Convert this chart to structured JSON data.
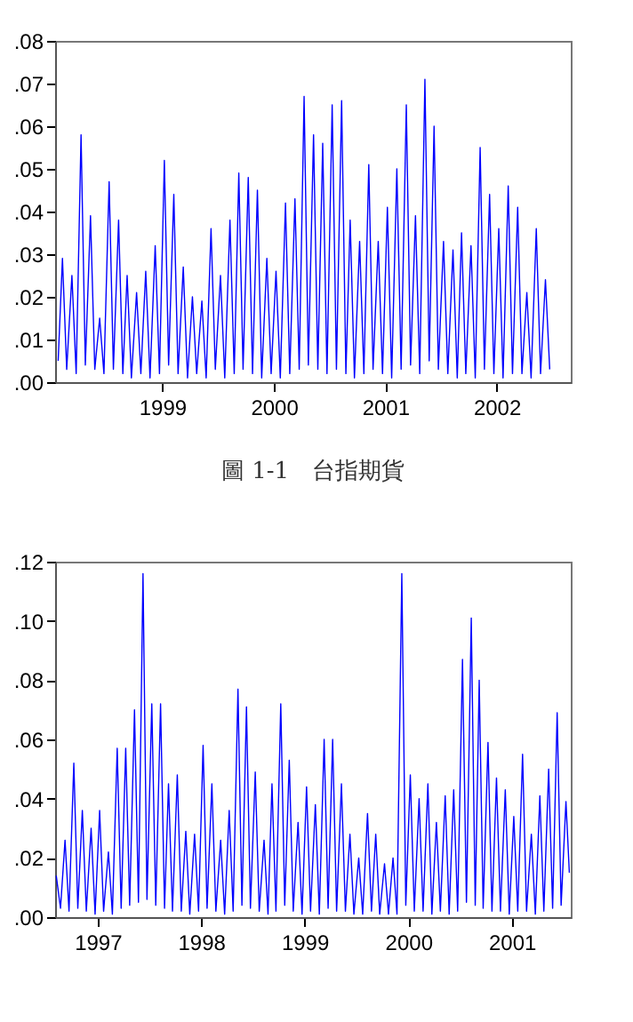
{
  "chart_data": [
    {
      "type": "line",
      "title": "圖 1-1　台指期貨",
      "xlim": [
        "1998-07-15",
        "2003-03-01"
      ],
      "ylim": [
        0,
        0.08
      ],
      "xticks": [
        {
          "value": "1999-07",
          "label": "1999"
        },
        {
          "value": "2000-07",
          "label": "2000"
        },
        {
          "value": "2001-07",
          "label": "2001"
        },
        {
          "value": "2002-07",
          "label": "2002"
        }
      ],
      "yticks": [
        {
          "value": 0,
          "label": ".00"
        },
        {
          "value": 0.01,
          "label": ".01"
        },
        {
          "value": 0.02,
          "label": ".02"
        },
        {
          "value": 0.03,
          "label": ".03"
        },
        {
          "value": 0.04,
          "label": ".04"
        },
        {
          "value": 0.05,
          "label": ".05"
        },
        {
          "value": 0.06,
          "label": ".06"
        },
        {
          "value": 0.07,
          "label": ".07"
        },
        {
          "value": 0.08,
          "label": ".08"
        }
      ],
      "grid": false,
      "series": [
        {
          "color": "#0000ff",
          "x": [
            "1998-07-25",
            "1998-08-08",
            "1998-08-22",
            "1998-09-08",
            "1998-09-22",
            "1998-10-08",
            "1998-10-22",
            "1998-11-08",
            "1998-11-22",
            "1998-12-08",
            "1998-12-22",
            "1999-01-08",
            "1999-01-22",
            "1999-02-08",
            "1999-02-22",
            "1999-03-08",
            "1999-03-22",
            "1999-04-08",
            "1999-04-22",
            "1999-05-08",
            "1999-05-22",
            "1999-06-08",
            "1999-06-22",
            "1999-07-08",
            "1999-07-22",
            "1999-08-08",
            "1999-08-22",
            "1999-09-08",
            "1999-09-22",
            "1999-10-08",
            "1999-10-22",
            "1999-11-08",
            "1999-11-22",
            "1999-12-08",
            "1999-12-22",
            "2000-01-08",
            "2000-01-22",
            "2000-02-08",
            "2000-02-22",
            "2000-03-08",
            "2000-03-22",
            "2000-04-08",
            "2000-04-22",
            "2000-05-08",
            "2000-05-22",
            "2000-06-08",
            "2000-06-22",
            "2000-07-08",
            "2000-07-22",
            "2000-08-08",
            "2000-08-22",
            "2000-09-08",
            "2000-09-22",
            "2000-10-08",
            "2000-10-22",
            "2000-11-08",
            "2000-11-22",
            "2000-12-08",
            "2000-12-22",
            "2001-01-08",
            "2001-01-22",
            "2001-02-08",
            "2001-02-22",
            "2001-03-08",
            "2001-03-22",
            "2001-04-08",
            "2001-04-22",
            "2001-05-08",
            "2001-05-22",
            "2001-06-08",
            "2001-06-22",
            "2001-07-08",
            "2001-07-22",
            "2001-08-08",
            "2001-08-22",
            "2001-09-08",
            "2001-09-22",
            "2001-10-08",
            "2001-10-22",
            "2001-11-08",
            "2001-11-22",
            "2001-12-08",
            "2001-12-22",
            "2002-01-08",
            "2002-01-22",
            "2002-02-08",
            "2002-02-22",
            "2002-03-08",
            "2002-03-22",
            "2002-04-08",
            "2002-04-22",
            "2002-05-08",
            "2002-05-22",
            "2002-06-08",
            "2002-06-22",
            "2002-07-08",
            "2002-07-22",
            "2002-08-08",
            "2002-08-22",
            "2002-09-08",
            "2002-09-22",
            "2002-10-08",
            "2002-10-22",
            "2002-11-08",
            "2002-11-22",
            "2002-12-08",
            "2002-12-22"
          ],
          "values": [
            0.005,
            0.029,
            0.003,
            0.025,
            0.002,
            0.058,
            0.004,
            0.039,
            0.003,
            0.015,
            0.002,
            0.047,
            0.003,
            0.038,
            0.002,
            0.025,
            0.001,
            0.021,
            0.002,
            0.026,
            0.001,
            0.032,
            0.002,
            0.052,
            0.004,
            0.044,
            0.002,
            0.027,
            0.001,
            0.02,
            0.002,
            0.019,
            0.001,
            0.036,
            0.003,
            0.025,
            0.001,
            0.038,
            0.002,
            0.049,
            0.003,
            0.048,
            0.002,
            0.045,
            0.001,
            0.029,
            0.002,
            0.026,
            0.001,
            0.042,
            0.002,
            0.043,
            0.003,
            0.067,
            0.004,
            0.058,
            0.003,
            0.056,
            0.002,
            0.065,
            0.003,
            0.066,
            0.002,
            0.038,
            0.001,
            0.033,
            0.002,
            0.051,
            0.003,
            0.033,
            0.002,
            0.041,
            0.001,
            0.05,
            0.003,
            0.065,
            0.004,
            0.039,
            0.002,
            0.071,
            0.005,
            0.06,
            0.003,
            0.033,
            0.002,
            0.031,
            0.001,
            0.035,
            0.002,
            0.032,
            0.001,
            0.055,
            0.003,
            0.044,
            0.002,
            0.036,
            0.001,
            0.046,
            0.002,
            0.041,
            0.002,
            0.021,
            0.001,
            0.036,
            0.002,
            0.024,
            0.003
          ]
        }
      ]
    },
    {
      "type": "line",
      "xlim": [
        "1997-02-01",
        "2002-01-25"
      ],
      "ylim": [
        0,
        0.12
      ],
      "xticks": [
        {
          "value": "1997-07",
          "label": "1997"
        },
        {
          "value": "1998-07",
          "label": "1998"
        },
        {
          "value": "1999-07",
          "label": "1999"
        },
        {
          "value": "2000-07",
          "label": "2000"
        },
        {
          "value": "2001-07",
          "label": "2001"
        }
      ],
      "yticks": [
        {
          "value": 0,
          "label": ".00"
        },
        {
          "value": 0.02,
          "label": ".02"
        },
        {
          "value": 0.04,
          "label": ".04"
        },
        {
          "value": 0.06,
          "label": ".06"
        },
        {
          "value": 0.08,
          "label": ".08"
        },
        {
          "value": 0.1,
          "label": ".10"
        },
        {
          "value": 0.12,
          "label": ".12"
        }
      ],
      "grid": false,
      "series": [
        {
          "color": "#0000ff",
          "x": [
            "1997-02-05",
            "1997-02-20",
            "1997-03-08",
            "1997-03-22",
            "1997-04-08",
            "1997-04-22",
            "1997-05-08",
            "1997-05-22",
            "1997-06-08",
            "1997-06-22",
            "1997-07-08",
            "1997-07-22",
            "1997-08-08",
            "1997-08-22",
            "1997-09-08",
            "1997-09-22",
            "1997-10-08",
            "1997-10-22",
            "1997-11-08",
            "1997-11-22",
            "1997-12-08",
            "1997-12-22",
            "1998-01-08",
            "1998-01-22",
            "1998-02-08",
            "1998-02-22",
            "1998-03-08",
            "1998-03-22",
            "1998-04-08",
            "1998-04-22",
            "1998-05-08",
            "1998-05-22",
            "1998-06-08",
            "1998-06-22",
            "1998-07-08",
            "1998-07-22",
            "1998-08-08",
            "1998-08-22",
            "1998-09-08",
            "1998-09-22",
            "1998-10-08",
            "1998-10-22",
            "1998-11-08",
            "1998-11-22",
            "1998-12-08",
            "1998-12-22",
            "1999-01-08",
            "1999-01-22",
            "1999-02-08",
            "1999-02-22",
            "1999-03-08",
            "1999-03-22",
            "1999-04-08",
            "1999-04-22",
            "1999-05-08",
            "1999-05-22",
            "1999-06-08",
            "1999-06-22",
            "1999-07-08",
            "1999-07-22",
            "1999-08-08",
            "1999-08-22",
            "1999-09-08",
            "1999-09-22",
            "1999-10-08",
            "1999-10-22",
            "1999-11-08",
            "1999-11-22",
            "1999-12-08",
            "1999-12-22",
            "2000-01-08",
            "2000-01-22",
            "2000-02-08",
            "2000-02-22",
            "2000-03-08",
            "2000-03-22",
            "2000-04-08",
            "2000-04-22",
            "2000-05-08",
            "2000-05-22",
            "2000-06-08",
            "2000-06-22",
            "2000-07-08",
            "2000-07-22",
            "2000-08-08",
            "2000-08-22",
            "2000-09-08",
            "2000-09-22",
            "2000-10-08",
            "2000-10-22",
            "2000-11-08",
            "2000-11-22",
            "2000-12-08",
            "2000-12-22",
            "2001-01-08",
            "2001-01-22",
            "2001-02-08",
            "2001-02-22",
            "2001-03-08",
            "2001-03-22",
            "2001-04-08",
            "2001-04-22",
            "2001-05-08",
            "2001-05-22",
            "2001-06-08",
            "2001-06-22",
            "2001-07-08",
            "2001-07-22",
            "2001-08-08",
            "2001-08-22",
            "2001-09-08",
            "2001-09-22",
            "2001-10-08",
            "2001-10-22",
            "2001-11-08",
            "2001-11-22",
            "2001-12-08",
            "2001-12-22",
            "2002-01-08",
            "2002-01-20"
          ],
          "values": [
            0.014,
            0.003,
            0.026,
            0.002,
            0.052,
            0.003,
            0.036,
            0.002,
            0.03,
            0.001,
            0.036,
            0.002,
            0.022,
            0.001,
            0.057,
            0.003,
            0.057,
            0.004,
            0.07,
            0.005,
            0.116,
            0.006,
            0.072,
            0.004,
            0.072,
            0.003,
            0.045,
            0.002,
            0.048,
            0.002,
            0.029,
            0.001,
            0.028,
            0.002,
            0.058,
            0.003,
            0.045,
            0.002,
            0.026,
            0.001,
            0.036,
            0.002,
            0.077,
            0.004,
            0.071,
            0.003,
            0.049,
            0.002,
            0.026,
            0.001,
            0.045,
            0.002,
            0.072,
            0.004,
            0.053,
            0.002,
            0.032,
            0.001,
            0.044,
            0.002,
            0.038,
            0.001,
            0.06,
            0.003,
            0.06,
            0.002,
            0.045,
            0.002,
            0.028,
            0.001,
            0.02,
            0.001,
            0.035,
            0.002,
            0.028,
            0.001,
            0.018,
            0.001,
            0.02,
            0.001,
            0.116,
            0.004,
            0.048,
            0.002,
            0.04,
            0.002,
            0.045,
            0.001,
            0.032,
            0.002,
            0.041,
            0.001,
            0.043,
            0.002,
            0.087,
            0.005,
            0.101,
            0.004,
            0.08,
            0.003,
            0.059,
            0.002,
            0.047,
            0.002,
            0.043,
            0.001,
            0.034,
            0.002,
            0.055,
            0.002,
            0.028,
            0.001,
            0.041,
            0.002,
            0.05,
            0.003,
            0.069,
            0.004,
            0.039,
            0.015
          ]
        }
      ]
    }
  ]
}
